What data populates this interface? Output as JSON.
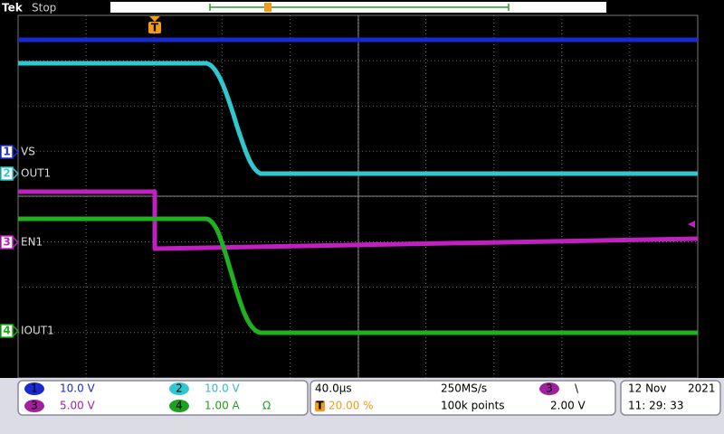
{
  "header": {
    "brand": "Tek",
    "status": "Stop",
    "trigger_marker": "T"
  },
  "channel_labels": [
    {
      "number": "1",
      "name": "VS"
    },
    {
      "number": "2",
      "name": "OUT1"
    },
    {
      "number": "3",
      "name": "EN1"
    },
    {
      "number": "4",
      "name": "IOUT1"
    }
  ],
  "channel_readouts": [
    {
      "number": "1",
      "scale": "10.0 V"
    },
    {
      "number": "2",
      "scale": "10.0 V"
    },
    {
      "number": "3",
      "scale": "5.00 V"
    },
    {
      "number": "4",
      "scale": "1.00 A",
      "unit": "Ω"
    }
  ],
  "timebase": {
    "scale": "40.0µs",
    "sample_rate": "250MS/s",
    "trigger_position": "20.00 %",
    "record_length": "100k points"
  },
  "trigger": {
    "source": "3",
    "slope": "\\",
    "level": "2.00 V"
  },
  "datetime": {
    "date": "12 Nov",
    "year": "2021",
    "time": "11: 29: 33"
  }
}
